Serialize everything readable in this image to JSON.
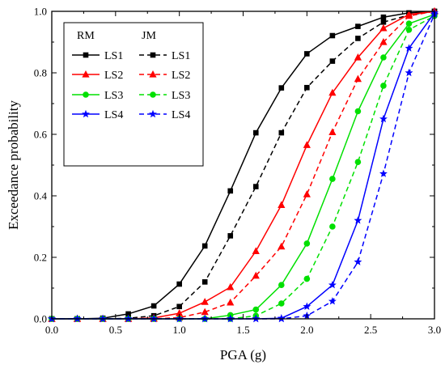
{
  "chart_data": {
    "type": "line",
    "xlabel": "PGA (g)",
    "ylabel": "Exceedance probability",
    "xlim": [
      0.0,
      3.0
    ],
    "ylim": [
      0.0,
      1.0
    ],
    "x_ticks": [
      "0.0",
      "0.5",
      "1.0",
      "1.5",
      "2.0",
      "2.5",
      "3.0"
    ],
    "y_ticks": [
      "0.0",
      "0.2",
      "0.4",
      "0.6",
      "0.8",
      "1.0"
    ],
    "grid": false,
    "legend": {
      "placement": "top-left",
      "group_headers": [
        "RM",
        "JM"
      ]
    },
    "x": [
      0.0,
      0.2,
      0.4,
      0.6,
      0.8,
      1.0,
      1.2,
      1.4,
      1.6,
      1.8,
      2.0,
      2.2,
      2.4,
      2.6,
      2.8,
      3.0
    ],
    "series": [
      {
        "name": "LS1",
        "group": "RM",
        "color": "#000000",
        "dash": "solid",
        "marker": "square",
        "values": [
          0.0,
          0.0,
          0.002,
          0.016,
          0.042,
          0.113,
          0.237,
          0.416,
          0.605,
          0.751,
          0.862,
          0.921,
          0.951,
          0.981,
          0.995,
          1.0
        ]
      },
      {
        "name": "LS1",
        "group": "JM",
        "color": "#000000",
        "dash": "dashed",
        "marker": "square",
        "values": [
          0.0,
          0.0,
          0.0,
          0.002,
          0.01,
          0.04,
          0.12,
          0.27,
          0.43,
          0.605,
          0.752,
          0.838,
          0.912,
          0.965,
          0.988,
          1.0
        ]
      },
      {
        "name": "LS2",
        "group": "RM",
        "color": "#ff0000",
        "dash": "solid",
        "marker": "triangle",
        "values": [
          0.0,
          0.0,
          0.0,
          0.0,
          0.003,
          0.018,
          0.055,
          0.103,
          0.22,
          0.37,
          0.565,
          0.735,
          0.85,
          0.945,
          0.99,
          1.0
        ]
      },
      {
        "name": "LS2",
        "group": "JM",
        "color": "#ff0000",
        "dash": "dashed",
        "marker": "triangle",
        "values": [
          0.0,
          0.0,
          0.0,
          0.0,
          0.0,
          0.004,
          0.022,
          0.053,
          0.14,
          0.235,
          0.405,
          0.607,
          0.78,
          0.9,
          0.985,
          1.0
        ]
      },
      {
        "name": "LS3",
        "group": "RM",
        "color": "#00e000",
        "dash": "solid",
        "marker": "circle",
        "values": [
          0.0,
          0.0,
          0.0,
          0.0,
          0.0,
          0.0,
          0.0,
          0.012,
          0.03,
          0.11,
          0.245,
          0.455,
          0.675,
          0.85,
          0.96,
          0.99
        ]
      },
      {
        "name": "LS3",
        "group": "JM",
        "color": "#00e000",
        "dash": "dashed",
        "marker": "circle",
        "values": [
          0.0,
          0.0,
          0.0,
          0.0,
          0.0,
          0.0,
          0.0,
          0.0,
          0.01,
          0.05,
          0.13,
          0.3,
          0.51,
          0.758,
          0.94,
          0.985
        ]
      },
      {
        "name": "LS4",
        "group": "RM",
        "color": "#0000ff",
        "dash": "solid",
        "marker": "star",
        "values": [
          0.0,
          0.0,
          0.0,
          0.0,
          0.0,
          0.0,
          0.0,
          0.0,
          0.0,
          0.002,
          0.04,
          0.11,
          0.32,
          0.65,
          0.88,
          0.995
        ]
      },
      {
        "name": "LS4",
        "group": "JM",
        "color": "#0000ff",
        "dash": "dashed",
        "marker": "star",
        "values": [
          0.0,
          0.0,
          0.0,
          0.0,
          0.0,
          0.0,
          0.0,
          0.0,
          0.0,
          0.0,
          0.01,
          0.057,
          0.185,
          0.472,
          0.8,
          0.99
        ]
      }
    ]
  }
}
